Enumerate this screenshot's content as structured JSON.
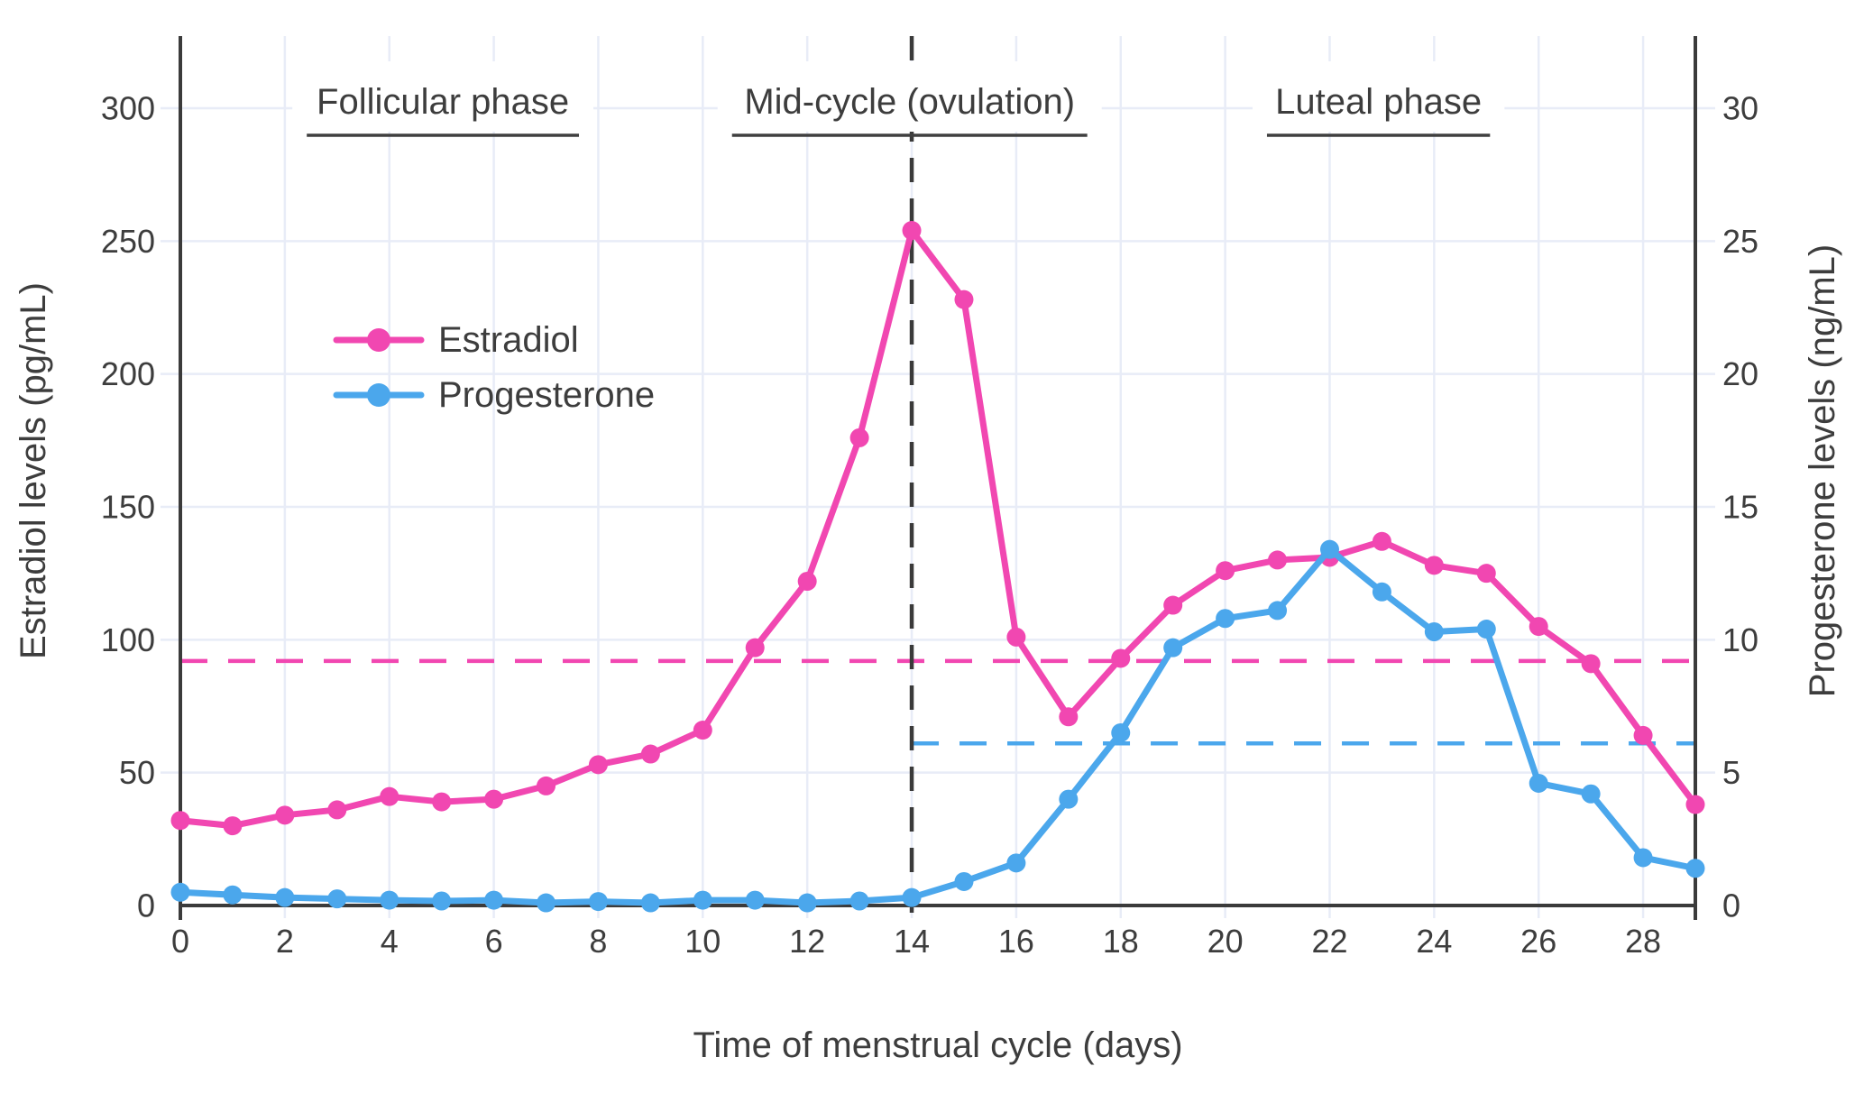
{
  "chart_data": {
    "type": "line",
    "title": "",
    "xlabel": "Time of menstrual cycle (days)",
    "ylabel_left": "Estradiol levels (pg/mL)",
    "ylabel_right": "Progesterone levels (ng/mL)",
    "x": [
      0,
      1,
      2,
      3,
      4,
      5,
      6,
      7,
      8,
      9,
      10,
      11,
      12,
      13,
      14,
      15,
      16,
      17,
      18,
      19,
      20,
      21,
      22,
      23,
      24,
      25,
      26,
      27,
      28,
      29
    ],
    "x_ticks": [
      0,
      2,
      4,
      6,
      8,
      10,
      12,
      14,
      16,
      18,
      20,
      22,
      24,
      26,
      28
    ],
    "left_axis": {
      "unit": "pg/mL",
      "ticks": [
        0,
        50,
        100,
        150,
        200,
        250,
        300
      ],
      "range": [
        0,
        330
      ]
    },
    "right_axis": {
      "unit": "ng/mL",
      "ticks": [
        0,
        5,
        10,
        15,
        20,
        25,
        30
      ],
      "range": [
        0,
        33
      ]
    },
    "grid": true,
    "legend_position": "upper-left-inside",
    "series": [
      {
        "name": "Estradiol",
        "axis": "left",
        "color": "#f147b1",
        "values": [
          32,
          30,
          34,
          36,
          41,
          39,
          40,
          45,
          53,
          57,
          66,
          97,
          122,
          176,
          254,
          228,
          101,
          71,
          93,
          113,
          126,
          130,
          131,
          137,
          128,
          125,
          105,
          91,
          64,
          38
        ]
      },
      {
        "name": "Progesterone",
        "axis": "right",
        "color": "#4ba7ec",
        "values": [
          0.5,
          0.4,
          0.3,
          0.25,
          0.2,
          0.17,
          0.2,
          0.1,
          0.15,
          0.1,
          0.2,
          0.2,
          0.1,
          0.17,
          0.3,
          0.9,
          1.6,
          4.0,
          6.5,
          9.7,
          10.8,
          11.1,
          13.4,
          11.8,
          10.3,
          10.4,
          4.6,
          4.2,
          1.8,
          1.4
        ]
      }
    ],
    "reference_lines": [
      {
        "name": "estradiol-baseline",
        "axis": "left",
        "value": 92,
        "color": "#f147b1",
        "style": "dashed",
        "from_day": 0,
        "to_day": 29
      },
      {
        "name": "progesterone-baseline",
        "axis": "right",
        "value": 6.1,
        "color": "#4ba7ec",
        "style": "dashed",
        "from_day": 14,
        "to_day": 29
      }
    ],
    "ovulation_line": {
      "day": 14,
      "color": "#3a3a3a",
      "style": "dashed"
    },
    "phase_annotations": [
      {
        "label": "Follicular phase",
        "from_day": 2.42,
        "to_day": 7.63
      },
      {
        "label": "Mid-cycle (ovulation)",
        "from_day": 10.56,
        "to_day": 17.36
      },
      {
        "label": "Luteal phase",
        "from_day": 20.8,
        "to_day": 25.07
      }
    ],
    "colors": {
      "axis": "#3b3b3b",
      "text": "#3d3d3d",
      "grid": "#e8ecf7",
      "background": "#ffffff"
    }
  }
}
